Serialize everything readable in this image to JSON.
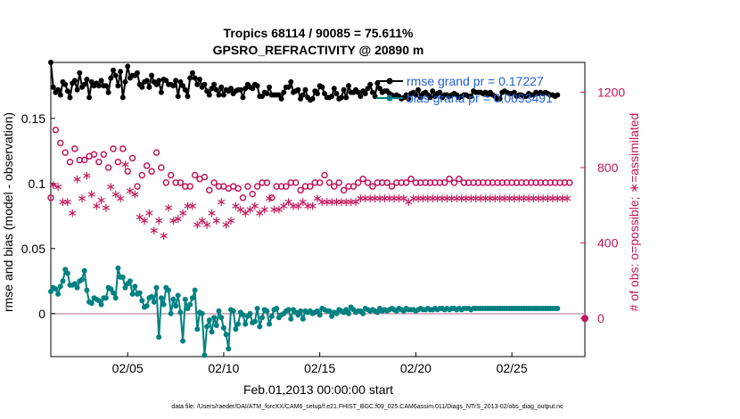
{
  "chart_data": {
    "type": "line",
    "title": "Tropics 68114 / 90085 = 75.611%",
    "subtitle": "GPSRO_REFRACTIVITY @ 20890 m",
    "xlabel": "Feb.01,2013 00:00:00 start",
    "ylabel": "rmse and bias (model - observation)",
    "ylabel_right": "# of obs: o=possible; ∗=assimilated",
    "xlim": [
      1,
      28.8
    ],
    "ylim": [
      -0.033,
      0.193
    ],
    "ylim_right": [
      -202.7,
      1358.1
    ],
    "x_ticks": [
      5,
      10,
      15,
      20,
      25
    ],
    "x_tick_labels": [
      "02/05",
      "02/10",
      "02/15",
      "02/20",
      "02/25"
    ],
    "y_ticks": [
      0,
      0.05,
      0.1,
      0.15
    ],
    "y_tick_labels": [
      "0",
      "0.05",
      "0.1",
      "0.15"
    ],
    "y_ticks_right": [
      0,
      400,
      800,
      1200
    ],
    "y_tick_labels_right": [
      "0",
      "400",
      "800",
      "1200"
    ],
    "legend": [
      {
        "label": "rmse grand pr = 0.17227",
        "color": "#000000"
      },
      {
        "label": "bias grand pr = 0.0093491",
        "color": "#008080"
      }
    ],
    "series": [
      {
        "name": "rmse",
        "axis": "left",
        "color": "#000000",
        "marker": "dot",
        "values": [
          0.193,
          0.174,
          0.17,
          0.172,
          0.168,
          0.178,
          0.176,
          0.171,
          0.166,
          0.177,
          0.179,
          0.172,
          0.185,
          0.174,
          0.176,
          0.18,
          0.166,
          0.178,
          0.175,
          0.177,
          0.175,
          0.179,
          0.175,
          0.175,
          0.17,
          0.181,
          0.187,
          0.183,
          0.175,
          0.186,
          0.166,
          0.178,
          0.19,
          0.181,
          0.183,
          0.183,
          0.185,
          0.176,
          0.174,
          0.178,
          0.179,
          0.174,
          0.183,
          0.178,
          0.176,
          0.179,
          0.17,
          0.18,
          0.179,
          0.176,
          0.176,
          0.175,
          0.179,
          0.167,
          0.178,
          0.175,
          0.172,
          0.167,
          0.181,
          0.185,
          0.181,
          0.176,
          0.18,
          0.174,
          0.176,
          0.171,
          0.168,
          0.173,
          0.176,
          0.172,
          0.168,
          0.174,
          0.168,
          0.172,
          0.171,
          0.173,
          0.169,
          0.171,
          0.172,
          0.172,
          0.166,
          0.173,
          0.176,
          0.174,
          0.173,
          0.176,
          0.175,
          0.167,
          0.167,
          0.17,
          0.169,
          0.174,
          0.168,
          0.168,
          0.168,
          0.168,
          0.165,
          0.17,
          0.174,
          0.174,
          0.178,
          0.17,
          0.171,
          0.172,
          0.165,
          0.168,
          0.172,
          0.166,
          0.164,
          0.165,
          0.171,
          0.169,
          0.175,
          0.174,
          0.169,
          0.166,
          0.166,
          0.167,
          0.173,
          0.169,
          0.165,
          0.166,
          0.172,
          0.166,
          0.175,
          0.17,
          0.17,
          0.172,
          0.17,
          0.167,
          0.171,
          0.169,
          0.173,
          0.176,
          0.17,
          0.167,
          0.177,
          0.173,
          0.17,
          0.171,
          0.171,
          0.169,
          0.168,
          0.167,
          0.168,
          0.167,
          0.165,
          0.166,
          0.168,
          0.165,
          0.169,
          0.17,
          0.168,
          0.172,
          0.166,
          0.169,
          0.17,
          0.168,
          0.166,
          0.171,
          0.167,
          0.169,
          0.17,
          0.166,
          0.168,
          0.168,
          0.167,
          0.168,
          0.169,
          0.168,
          0.166,
          0.167,
          0.168,
          0.168,
          0.167,
          0.167,
          0.171,
          0.17,
          0.17,
          0.17,
          0.169,
          0.17,
          0.168,
          0.17,
          0.168,
          0.167,
          0.165,
          0.165,
          0.17,
          0.171,
          0.17,
          0.169,
          0.169,
          0.17,
          0.167,
          0.168,
          0.168,
          0.167,
          0.167,
          0.169,
          0.168,
          0.168,
          0.17,
          0.169,
          0.17,
          0.169,
          0.17,
          0.169,
          0.168,
          0.168,
          0.167,
          0.168
        ]
      },
      {
        "name": "bias",
        "axis": "left",
        "color": "#008080",
        "marker": "dot",
        "values": [
          0.017,
          0.02,
          0.019,
          0.015,
          0.021,
          0.025,
          0.034,
          0.031,
          0.022,
          0.022,
          0.023,
          0.02,
          0.025,
          0.026,
          0.033,
          0.018,
          0.009,
          0.008,
          0.012,
          0.011,
          0.01,
          0.007,
          0.012,
          0.012,
          0.02,
          0.019,
          0.016,
          0.012,
          0.035,
          0.028,
          0.028,
          0.02,
          0.023,
          0.025,
          0.015,
          0.021,
          0.015,
          0.016,
          0.01,
          0.005,
          0.006,
          0.012,
          0.013,
          0.009,
          0.02,
          -0.018,
          0.012,
          0.007,
          0.02,
          0.018,
          0.0,
          0.011,
          0.006,
          0.014,
          0.001,
          -0.021,
          0.011,
          0.004,
          0.007,
          0.012,
          0.018,
          -0.012,
          0.001,
          0.0,
          -0.032,
          -0.01,
          -0.005,
          -0.014,
          -0.003,
          -0.009,
          0.002,
          -0.003,
          -0.011,
          -0.016,
          -0.027,
          0.003,
          0.002,
          -0.012,
          -0.008,
          0.001,
          -0.001,
          -0.008,
          -0.002,
          0.0,
          -0.007,
          -0.006,
          0.004,
          -0.01,
          -0.003,
          0.003,
          0.002,
          -0.008,
          -0.002,
          0.003,
          0.004,
          -0.003,
          -0.001,
          0.0,
          0.002,
          0.003,
          -0.004,
          0.003,
          0.001,
          -0.001,
          0.002,
          -0.004,
          0.002,
          0.001,
          0.002,
          0.0,
          0.001,
          0.002,
          -0.001,
          0.004,
          0.003,
          0.002,
          0.002,
          -0.002,
          0.001,
          0.0,
          0.003,
          0.002,
          0.001,
          0.003,
          0.0,
          0.005,
          0.003,
          0.001,
          0.002,
          0.002,
          0.0,
          0.004,
          0.003,
          0.002,
          0.003,
          0.002,
          0.001,
          0.004,
          0.002,
          0.003,
          0.002,
          0.003,
          0.004,
          0.003,
          0.002,
          0.004,
          0.003,
          0.002,
          0.004,
          0.003,
          0.003,
          0.003,
          0.002,
          0.003,
          0.004,
          0.003,
          0.003,
          0.004,
          0.003,
          0.003,
          0.004,
          0.003,
          0.004,
          0.004,
          0.003,
          0.004,
          0.003,
          0.004,
          0.004,
          0.003,
          0.004,
          0.003,
          0.004,
          0.004,
          0.004,
          0.003,
          0.004,
          0.004,
          0.004,
          0.004,
          0.004,
          0.004,
          0.004,
          0.004,
          0.004,
          0.004,
          0.004,
          0.004,
          0.004,
          0.004,
          0.004,
          0.004,
          0.004,
          0.004,
          0.004,
          0.004,
          0.004,
          0.004,
          0.004,
          0.004,
          0.004,
          0.004,
          0.004,
          0.004,
          0.004,
          0.004,
          0.004,
          0.004,
          0.004,
          0.004,
          0.004,
          0.004
        ]
      },
      {
        "name": "possible",
        "axis": "right",
        "color": "#c2185b",
        "marker": "circle",
        "values": [
          640,
          830,
          1000,
          1010,
          930,
          880,
          880,
          790,
          830,
          970,
          900,
          820,
          840,
          850,
          840,
          920,
          860,
          770,
          870,
          710,
          830,
          940,
          870,
          810,
          800,
          820,
          900,
          880,
          830,
          850,
          900,
          900,
          780,
          790,
          850,
          880,
          700,
          750,
          760,
          720,
          810,
          830,
          780,
          840,
          880,
          960,
          800,
          720,
          720,
          800,
          760,
          740,
          720,
          660,
          720,
          730,
          700,
          720,
          700,
          820,
          760,
          800,
          740,
          720,
          750,
          700,
          680,
          740,
          720,
          620,
          700,
          690,
          700,
          710,
          690,
          680,
          700,
          660,
          690,
          680,
          640,
          650,
          700,
          720,
          660,
          690,
          700,
          680,
          720,
          700,
          720,
          740,
          640,
          720,
          700,
          700,
          700,
          740,
          700,
          730,
          720,
          700,
          720,
          720,
          680,
          660,
          700,
          680,
          700,
          740,
          720,
          700,
          720,
          740,
          760,
          700,
          720,
          720,
          700,
          720,
          720,
          700,
          680,
          720,
          700,
          740,
          700,
          720,
          720,
          740,
          740,
          720,
          720,
          720,
          700,
          740,
          720,
          720,
          720,
          720,
          720,
          720,
          700,
          720,
          720,
          720,
          720,
          740,
          720,
          720,
          740,
          740,
          720,
          720,
          720,
          720,
          720,
          740,
          720,
          720,
          720,
          720,
          720,
          720,
          720,
          740,
          740,
          740,
          720,
          720,
          740,
          720,
          720,
          720,
          720,
          740,
          720,
          720,
          720,
          720,
          720,
          720,
          720,
          720,
          720,
          720,
          720,
          720,
          720,
          720,
          720,
          720,
          720,
          720,
          720,
          720,
          720,
          720,
          720,
          720,
          720,
          720,
          720,
          720,
          720,
          720,
          720,
          720,
          720,
          720,
          720,
          720,
          720,
          720,
          720,
          720,
          720,
          720
        ]
      },
      {
        "name": "assimilated",
        "axis": "right",
        "color": "#c2185b",
        "marker": "star",
        "values": [
          480,
          710,
          760,
          700,
          650,
          620,
          660,
          620,
          600,
          560,
          700,
          740,
          690,
          640,
          780,
          760,
          680,
          660,
          640,
          600,
          580,
          630,
          560,
          590,
          740,
          700,
          680,
          660,
          620,
          640,
          770,
          820,
          740,
          680,
          640,
          660,
          590,
          540,
          510,
          520,
          540,
          560,
          590,
          470,
          530,
          520,
          510,
          440,
          560,
          590,
          580,
          520,
          480,
          530,
          540,
          560,
          430,
          600,
          590,
          600,
          560,
          500,
          560,
          520,
          460,
          500,
          540,
          560,
          470,
          520,
          560,
          620,
          560,
          500,
          470,
          520,
          560,
          600,
          660,
          580,
          560,
          560,
          520,
          580,
          540,
          600,
          620,
          560,
          540,
          580,
          620,
          640,
          600,
          580,
          560,
          580,
          600,
          600,
          620,
          620,
          640,
          600,
          620,
          600,
          600,
          620,
          640,
          600,
          620,
          600,
          620,
          640,
          600,
          620,
          640,
          620,
          640,
          620,
          640,
          620,
          640,
          620,
          640,
          620,
          640,
          620,
          640,
          620,
          640,
          640,
          620,
          640,
          620,
          640,
          620,
          640,
          620,
          640,
          620,
          640,
          620,
          640,
          640,
          640,
          620,
          640,
          620,
          640,
          640,
          620,
          640,
          640,
          640,
          640,
          640,
          640,
          640,
          640,
          640,
          640,
          640,
          640,
          640,
          640,
          640,
          640,
          640,
          640,
          640,
          640,
          640,
          640,
          640,
          640,
          640,
          640,
          640,
          640,
          640,
          640,
          640,
          640,
          640,
          640,
          640,
          640,
          640,
          640,
          640,
          640,
          640,
          640,
          640,
          640,
          640,
          640,
          640,
          640,
          640,
          640,
          640,
          640,
          640,
          640,
          640,
          640,
          640,
          640,
          640,
          640,
          640,
          640,
          640,
          640,
          640,
          640,
          640
        ]
      }
    ],
    "series_x_start": 1,
    "series_x_step": 0.125,
    "end_marker": {
      "x": 28.8,
      "y_right": 0
    }
  },
  "footer": "data file: /Users/raeder/DAI/ATM_forcXX/CAM6_setup/f.e21.FHIST_BGC.f09_025.CAM6assim.011/Diags_NTrS_2013-02/obs_diag_output.nc"
}
